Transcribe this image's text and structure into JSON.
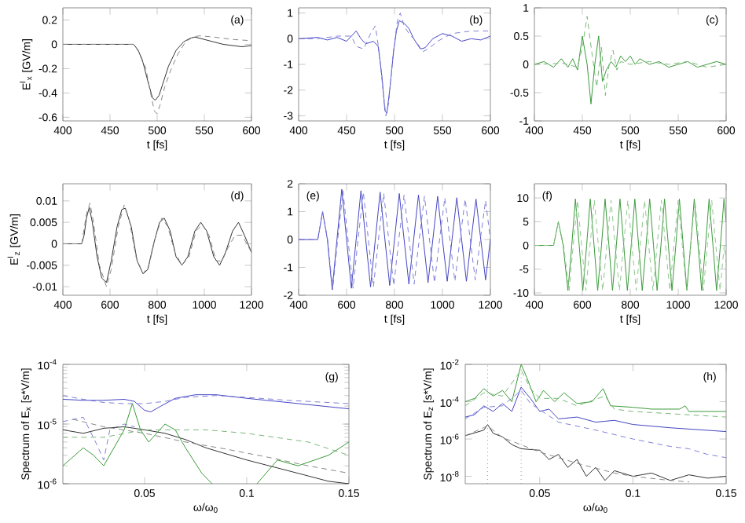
{
  "chart_data": [
    {
      "type": "line",
      "xlabel": "t [fs]",
      "ylabel": "E$^{l}$$_{x}$ [GV/m]",
      "xlim": [
        400,
        600
      ],
      "ylim": [
        -0.63,
        0.3
      ],
      "xticks": [
        400,
        450,
        500,
        550,
        600
      ],
      "yticks": [
        -0.6,
        -0.4,
        -0.2,
        0,
        0.2
      ],
      "annotations": [
        "(a)"
      ],
      "series": [
        {
          "color": "#333333",
          "line_style": "solid",
          "x": [
            400,
            450,
            475,
            480,
            485,
            490,
            495,
            498,
            502,
            507,
            512,
            520,
            528,
            535,
            540,
            550,
            560,
            570,
            580,
            590,
            600
          ],
          "values": [
            0,
            0,
            0,
            -0.05,
            -0.15,
            -0.3,
            -0.44,
            -0.46,
            -0.42,
            -0.3,
            -0.18,
            -0.05,
            0.02,
            0.05,
            0.06,
            0.04,
            0.02,
            0,
            -0.01,
            -0.02,
            -0.01
          ]
        },
        {
          "color": "#888888",
          "line_style": "dashed",
          "x": [
            400,
            475,
            482,
            488,
            493,
            497,
            500,
            503,
            508,
            515,
            522,
            530,
            538,
            545,
            560,
            580,
            600
          ],
          "values": [
            0,
            0,
            -0.08,
            -0.2,
            -0.4,
            -0.55,
            -0.57,
            -0.5,
            -0.35,
            -0.2,
            -0.08,
            0.02,
            0.06,
            0.07,
            0.06,
            0.04,
            0.03
          ]
        }
      ]
    },
    {
      "type": "line",
      "xlabel": "t [fs]",
      "xlim": [
        400,
        600
      ],
      "ylim": [
        -3.2,
        1.2
      ],
      "xticks": [
        400,
        450,
        500,
        550,
        600
      ],
      "yticks": [
        -3,
        -2,
        -1,
        0,
        1
      ],
      "annotations": [
        "(b)"
      ],
      "series": [
        {
          "color": "#4444c4",
          "line_style": "solid",
          "x": [
            400,
            420,
            430,
            440,
            450,
            460,
            465,
            470,
            478,
            483,
            487,
            490,
            492,
            495,
            499,
            502,
            505,
            510,
            515,
            520,
            527,
            532,
            540,
            550,
            560,
            570,
            580,
            590,
            600
          ],
          "values": [
            0,
            0.05,
            -0.05,
            0.05,
            -0.1,
            0.3,
            0,
            -0.2,
            -0.1,
            -0.3,
            -1.5,
            -2.8,
            -2.9,
            -2,
            -0.5,
            0.3,
            0.7,
            0.6,
            0.4,
            0,
            -0.4,
            -0.35,
            0,
            0.2,
            0.1,
            -0.1,
            0,
            -0.05,
            0.1
          ]
        },
        {
          "color": "#8080d8",
          "line_style": "dashed",
          "x": [
            400,
            420,
            440,
            455,
            460,
            468,
            475,
            480,
            484,
            488,
            491,
            494,
            498,
            503,
            506,
            510,
            515,
            520,
            530,
            535,
            545,
            560,
            580,
            600
          ],
          "values": [
            0,
            0,
            0.1,
            0.1,
            -0.3,
            -0.4,
            0.2,
            0.5,
            -0.5,
            -2,
            -3,
            -2.5,
            -0.8,
            0.7,
            1,
            0.5,
            0.2,
            0,
            -0.5,
            -0.4,
            -0.1,
            0.2,
            0.3,
            0.3
          ]
        }
      ]
    },
    {
      "type": "line",
      "xlabel": "t [fs]",
      "xlim": [
        400,
        600
      ],
      "ylim": [
        -1,
        1
      ],
      "xticks": [
        400,
        450,
        500,
        550,
        600
      ],
      "yticks": [
        -1,
        -0.5,
        0,
        0.5,
        1
      ],
      "annotations": [
        "(c)"
      ],
      "series": [
        {
          "color": "#3a9a3a",
          "line_style": "solid",
          "x": [
            400,
            410,
            420,
            428,
            435,
            440,
            445,
            450,
            455,
            459,
            463,
            467,
            471,
            475,
            480,
            485,
            490,
            495,
            500,
            505,
            510,
            520,
            530,
            540,
            550,
            560,
            570,
            580,
            590,
            600
          ],
          "values": [
            0,
            0.05,
            -0.05,
            0.1,
            -0.05,
            0.1,
            -0.1,
            0.5,
            0,
            -0.7,
            0,
            0.5,
            -0.3,
            -0.1,
            0.05,
            -0.05,
            0.15,
            0.05,
            0.15,
            0,
            0.1,
            0,
            0.05,
            -0.05,
            0,
            0.05,
            -0.05,
            0,
            0.05,
            0
          ]
        },
        {
          "color": "#78b878",
          "line_style": "dashed",
          "x": [
            400,
            430,
            445,
            450,
            455,
            460,
            465,
            470,
            474,
            478,
            482,
            486,
            490,
            500,
            520,
            540,
            560,
            580,
            600
          ],
          "values": [
            0,
            0.02,
            -0.05,
            0.3,
            0.85,
            0.2,
            -0.4,
            0.3,
            -0.55,
            0,
            0.25,
            -0.1,
            0.05,
            0,
            0.05,
            0,
            0.05,
            -0.05,
            0
          ]
        }
      ]
    },
    {
      "type": "line",
      "xlabel": "t [fs]",
      "ylabel": "E$^{l}$$_{z}$ [GV/m]",
      "xlim": [
        400,
        1200
      ],
      "ylim": [
        -0.012,
        0.014
      ],
      "xticks": [
        400,
        600,
        800,
        1000,
        1200
      ],
      "yticks": [
        -0.01,
        -0.005,
        0,
        0.005,
        0.01
      ],
      "annotations": [
        "(d)"
      ],
      "series": [
        {
          "color": "#333333",
          "line_style": "solid",
          "x": [
            400,
            480,
            490,
            500,
            512,
            525,
            545,
            565,
            585,
            605,
            630,
            650,
            665,
            690,
            715,
            740,
            760,
            785,
            810,
            830,
            855,
            880,
            905,
            930,
            960,
            985,
            1010,
            1040,
            1065,
            1090,
            1120,
            1145,
            1170,
            1200
          ],
          "values": [
            0,
            0,
            0.002,
            0.006,
            0.0085,
            0.005,
            -0.003,
            -0.008,
            -0.009,
            -0.004,
            0.004,
            0.008,
            0.0083,
            0.004,
            -0.004,
            -0.007,
            -0.006,
            0,
            0.005,
            0.006,
            0.003,
            -0.003,
            -0.005,
            -0.003,
            0.003,
            0.005,
            0.003,
            -0.003,
            -0.005,
            -0.002,
            0.003,
            0.005,
            0.002,
            -0.002
          ]
        },
        {
          "color": "#888888",
          "line_style": "dashed",
          "x": [
            400,
            480,
            500,
            515,
            530,
            555,
            585,
            605,
            635,
            660,
            680,
            710,
            740,
            765,
            795,
            820,
            845,
            875,
            905,
            935,
            965,
            990,
            1020,
            1050,
            1075,
            1100,
            1130,
            1160,
            1190,
            1200
          ],
          "values": [
            0,
            0,
            0.007,
            0.0095,
            0.005,
            -0.005,
            -0.01,
            -0.006,
            0.004,
            0.009,
            0.006,
            -0.003,
            -0.007,
            -0.005,
            0.002,
            0.006,
            0.004,
            -0.002,
            -0.005,
            -0.003,
            0.003,
            0.0045,
            0.002,
            -0.004,
            -0.004,
            -0.001,
            0.002,
            0.002,
            -0.001,
            -0.002
          ]
        }
      ]
    },
    {
      "type": "line",
      "xlabel": "t [fs]",
      "xlim": [
        400,
        1200
      ],
      "ylim": [
        -2,
        2
      ],
      "xticks": [
        400,
        600,
        800,
        1000,
        1200
      ],
      "yticks": [
        -2,
        -1,
        0,
        1,
        2
      ],
      "annotations": [
        "(e)"
      ],
      "series": [
        {
          "color": "#4444c4",
          "line_style": "solid",
          "x": [
            400,
            480,
            500,
            520,
            540,
            560,
            580,
            600,
            620,
            640,
            660,
            680,
            700,
            720,
            740,
            760,
            780,
            800,
            820,
            840,
            860,
            880,
            900,
            920,
            940,
            960,
            980,
            1000,
            1020,
            1040,
            1060,
            1080,
            1100,
            1120,
            1140,
            1160,
            1180,
            1200
          ],
          "values": [
            0,
            0,
            1,
            0,
            -1.8,
            0,
            1.8,
            0,
            -1.75,
            0,
            1.75,
            0,
            -1.7,
            0,
            1.7,
            0,
            -1.65,
            0,
            1.65,
            0,
            -1.6,
            0,
            1.6,
            0,
            -1.55,
            0,
            1.55,
            0,
            -1.5,
            0,
            1.5,
            0,
            -1.5,
            0,
            1.45,
            0,
            -1.45,
            0
          ]
        },
        {
          "color": "#8080d8",
          "line_style": "dashed",
          "x": [
            400,
            480,
            500,
            521,
            542,
            563,
            585,
            606,
            627,
            648,
            670,
            691,
            712,
            733,
            755,
            776,
            797,
            818,
            840,
            861,
            882,
            903,
            925,
            946,
            967,
            988,
            1010,
            1031,
            1052,
            1073,
            1095,
            1116,
            1137,
            1158,
            1180,
            1200
          ],
          "values": [
            0,
            0,
            1,
            0,
            -1.8,
            0,
            1.75,
            0,
            -1.75,
            0,
            1.7,
            0,
            -1.7,
            0,
            1.65,
            0,
            -1.65,
            0,
            1.6,
            0,
            -1.6,
            0,
            1.55,
            0,
            -1.55,
            0,
            1.5,
            0,
            -1.5,
            0,
            1.45,
            0,
            -1.45,
            0,
            1.4,
            0
          ]
        }
      ]
    },
    {
      "type": "line",
      "xlabel": "t [fs]",
      "xlim": [
        400,
        1200
      ],
      "ylim": [
        -10.5,
        13
      ],
      "xticks": [
        400,
        600,
        800,
        1000,
        1200
      ],
      "yticks": [
        -10,
        -5,
        0,
        5,
        10
      ],
      "annotations": [
        "(f)"
      ],
      "series": [
        {
          "color": "#3a9a3a",
          "line_style": "solid",
          "x": [
            400,
            480,
            500,
            520,
            540,
            556,
            571,
            587,
            602,
            618,
            633,
            649,
            664,
            680,
            695,
            711,
            726,
            742,
            757,
            773,
            788,
            804,
            819,
            835,
            850,
            866,
            881,
            897,
            912,
            928,
            943,
            959,
            974,
            990,
            1005,
            1021,
            1036,
            1052,
            1067,
            1083,
            1098,
            1114,
            1129,
            1145,
            1160,
            1176,
            1191,
            1200
          ],
          "values": [
            0,
            0,
            5,
            0,
            -9.5,
            0,
            9.8,
            0,
            -9.5,
            0,
            9.8,
            0,
            -9.5,
            0,
            9.8,
            0,
            -9.5,
            0,
            9.8,
            0,
            -9.5,
            0,
            9.8,
            0,
            -9.5,
            0,
            9.8,
            0,
            -9.5,
            0,
            9.8,
            0,
            -9.5,
            0,
            9.8,
            0,
            -9.5,
            0,
            9.8,
            0,
            -9.5,
            0,
            9.8,
            0,
            -9.5,
            0,
            9.8,
            5
          ]
        },
        {
          "color": "#90c890",
          "line_style": "dashed",
          "x": [
            400,
            480,
            500,
            522,
            545,
            562,
            580,
            597,
            615,
            632,
            650,
            667,
            685,
            702,
            720,
            737,
            755,
            772,
            790,
            807,
            825,
            842,
            860,
            877,
            895,
            912,
            930,
            947,
            965,
            982,
            1000,
            1017,
            1035,
            1052,
            1070,
            1087,
            1105,
            1122,
            1140,
            1157,
            1175,
            1192,
            1200
          ],
          "values": [
            0,
            0,
            5,
            0,
            -9.5,
            0,
            9.5,
            0,
            -9.5,
            0,
            9.5,
            0,
            -9.5,
            0,
            9.5,
            0,
            -9.5,
            0,
            9.5,
            0,
            -9.5,
            0,
            9.5,
            0,
            -9.5,
            0,
            9.5,
            0,
            -9.5,
            0,
            9.5,
            0,
            -9.5,
            0,
            9.5,
            0,
            -9.5,
            0,
            9.5,
            0,
            -9.5,
            0,
            -3.5
          ]
        }
      ]
    },
    {
      "type": "line",
      "log": "y",
      "xlabel": "ω/ω$_{0}$",
      "ylabel": "Spectrum of E$_{x}$ [s*V/m]",
      "xlim": [
        0.01,
        0.15
      ],
      "ylim": [
        1e-06,
        0.0001
      ],
      "xticks": [
        0.05,
        0.1,
        0.15
      ],
      "yticks": [
        {
          "value": 1e-06,
          "label": "10$^{-6}$"
        },
        {
          "value": 1e-05,
          "label": "10$^{-5}$"
        },
        {
          "value": 0.0001,
          "label": "10$^{-4}$"
        }
      ],
      "annotations": [
        "(g)"
      ],
      "series": [
        {
          "color": "#4444c4",
          "line_style": "solid",
          "x": [
            0.01,
            0.02,
            0.03,
            0.04,
            0.045,
            0.05,
            0.053,
            0.058,
            0.065,
            0.075,
            0.085,
            0.1,
            0.12,
            0.15
          ],
          "values": [
            2.6e-05,
            2.5e-05,
            2.5e-05,
            2.6e-05,
            2.4e-05,
            1.7e-05,
            1.6e-05,
            2e-05,
            2.7e-05,
            3.1e-05,
            3.1e-05,
            2.7e-05,
            2.3e-05,
            1.8e-05
          ]
        },
        {
          "color": "#8080d8",
          "line_style": "dashed",
          "x": [
            0.01,
            0.02,
            0.03,
            0.04,
            0.05,
            0.06,
            0.07,
            0.085,
            0.1,
            0.12,
            0.15
          ],
          "values": [
            3e-05,
            2.6e-05,
            2.3e-05,
            2.2e-05,
            2.2e-05,
            2.4e-05,
            2.8e-05,
            3e-05,
            2.8e-05,
            2.5e-05,
            2.2e-05
          ]
        },
        {
          "color": "#8080d8",
          "line_style": "dashed",
          "x": [
            0.01,
            0.02,
            0.026,
            0.03,
            0.033,
            0.04,
            0.045
          ],
          "values": [
            1.1e-05,
            1.3e-05,
            5e-06,
            2.5e-06,
            8e-06,
            1e-05,
            9e-06
          ]
        },
        {
          "color": "#333333",
          "line_style": "solid",
          "x": [
            0.01,
            0.02,
            0.03,
            0.04,
            0.05,
            0.06,
            0.07,
            0.08,
            0.1,
            0.125,
            0.14,
            0.15
          ],
          "values": [
            8e-06,
            7e-06,
            8.5e-06,
            9e-06,
            8e-06,
            7e-06,
            5.5e-06,
            4e-06,
            2.5e-06,
            1.5e-06,
            1.1e-06,
            1e-06
          ]
        },
        {
          "color": "#888888",
          "line_style": "dashed",
          "x": [
            0.015,
            0.03,
            0.05,
            0.07,
            0.09,
            0.11,
            0.13,
            0.15
          ],
          "values": [
            1.2e-05,
            9e-06,
            7e-06,
            5e-06,
            3.8e-06,
            2.8e-06,
            2e-06,
            1.5e-06
          ]
        },
        {
          "color": "#3a9a3a",
          "line_style": "solid",
          "x": [
            0.01,
            0.02,
            0.025,
            0.03,
            0.035,
            0.04,
            0.044,
            0.048,
            0.052,
            0.06,
            0.065,
            0.07,
            0.078,
            0.083,
            0.088,
            0.1,
            0.105,
            0.115,
            0.125,
            0.14,
            0.15
          ],
          "values": [
            2e-06,
            4e-06,
            3e-06,
            2e-06,
            4e-06,
            8e-06,
            2.2e-05,
            8e-06,
            5e-06,
            1e-05,
            8e-06,
            4e-06,
            1.5e-06,
            1e-06,
            null,
            null,
            1e-06,
            2.5e-06,
            2e-06,
            3e-06,
            5e-06
          ]
        },
        {
          "color": "#78b878",
          "line_style": "dashed",
          "x": [
            0.01,
            0.03,
            0.05,
            0.08,
            0.1,
            0.13,
            0.15
          ],
          "values": [
            6e-06,
            6e-06,
            8e-06,
            8e-06,
            7e-06,
            5e-06,
            3e-06
          ]
        }
      ]
    },
    {
      "type": "line",
      "log": "y",
      "xlabel": "ω/ω$_{0}$",
      "ylabel": "Spectrum of E$_{z}$ [s*V/m]",
      "xlim": [
        0.01,
        0.15
      ],
      "ylim": [
        4e-09,
        0.01
      ],
      "xticks": [
        0.05,
        0.1,
        0.15
      ],
      "yticks": [
        {
          "value": 1e-08,
          "label": "10$^{-8}$"
        },
        {
          "value": 1e-06,
          "label": "10$^{-6}$"
        },
        {
          "value": 0.0001,
          "label": "10$^{-4}$"
        },
        {
          "value": 0.01,
          "label": "10$^{-2}$"
        }
      ],
      "annotations": [
        "(h)"
      ],
      "ref_lines": [
        {
          "axis": "x",
          "value": 0.022,
          "color": "#999999",
          "line_style": "dotted"
        },
        {
          "axis": "x",
          "value": 0.04,
          "color": "#999999",
          "line_style": "dotted"
        }
      ],
      "series": [
        {
          "color": "#3a9a3a",
          "line_style": "solid",
          "x": [
            0.01,
            0.015,
            0.02,
            0.025,
            0.03,
            0.035,
            0.04,
            0.043,
            0.048,
            0.052,
            0.058,
            0.063,
            0.07,
            0.078,
            0.084,
            0.088,
            0.1,
            0.11,
            0.125,
            0.128,
            0.13,
            0.15
          ],
          "values": [
            0.0001,
            0.00015,
            0.0005,
            0.0002,
            0.0004,
            0.0001,
            0.01,
            0.002,
            0.0001,
            0.0004,
            0.0001,
            0.0003,
            8e-05,
            0.0001,
            0.0005,
            6e-05,
            5e-05,
            4e-05,
            4e-05,
            6e-05,
            3e-05,
            3e-05
          ]
        },
        {
          "color": "#78b878",
          "line_style": "dashed",
          "x": [
            0.01,
            0.02,
            0.03,
            0.04,
            0.045,
            0.05,
            0.06,
            0.07,
            0.085,
            0.09,
            0.1,
            0.15
          ],
          "values": [
            6e-05,
            0.0003,
            0.0002,
            0.005,
            0.0005,
            0.00015,
            0.00015,
            6e-05,
            0.0002,
            4e-05,
            3e-05,
            1.5e-05
          ]
        },
        {
          "color": "#4444c4",
          "line_style": "solid",
          "x": [
            0.01,
            0.015,
            0.02,
            0.025,
            0.03,
            0.035,
            0.04,
            0.045,
            0.05,
            0.055,
            0.06,
            0.07,
            0.08,
            0.09,
            0.1,
            0.12,
            0.15
          ],
          "values": [
            1.5e-05,
            2e-05,
            6e-05,
            3e-05,
            8e-05,
            3e-05,
            0.0006,
            0.00015,
            3e-05,
            4e-05,
            1.2e-05,
            1.5e-05,
            8e-06,
            1e-05,
            6e-06,
            4e-06,
            2.5e-06
          ]
        },
        {
          "color": "#8080d8",
          "line_style": "dashed",
          "x": [
            0.01,
            0.02,
            0.03,
            0.04,
            0.045,
            0.06,
            0.08,
            0.1,
            0.12,
            0.13,
            0.14,
            0.15
          ],
          "values": [
            1.2e-05,
            5e-05,
            6e-05,
            0.0004,
            8e-05,
            8e-06,
            3e-06,
            1e-06,
            4e-07,
            3e-07,
            1.5e-07,
            1e-07
          ]
        },
        {
          "color": "#333333",
          "line_style": "solid",
          "x": [
            0.01,
            0.02,
            0.022,
            0.025,
            0.03,
            0.035,
            0.04,
            0.05,
            0.055,
            0.06,
            0.065,
            0.07,
            0.075,
            0.08,
            0.085,
            0.09,
            0.1,
            0.11,
            0.12,
            0.13,
            0.14,
            0.15
          ],
          "values": [
            1.5e-06,
            3e-06,
            6e-06,
            2e-06,
            1.3e-06,
            5e-07,
            3e-07,
            2.5e-07,
            8e-08,
            1.5e-07,
            3e-08,
            8e-08,
            1e-08,
            3e-08,
            6e-09,
            2e-08,
            1e-08,
            1.5e-08,
            6e-09,
            1.2e-08,
            8e-09,
            1e-08
          ]
        },
        {
          "color": "#888888",
          "line_style": "dashed",
          "x": [
            0.01,
            0.022,
            0.03,
            0.05,
            0.07,
            0.09,
            0.1,
            0.12,
            0.13
          ],
          "values": [
            1.5e-06,
            5e-06,
            1.2e-06,
            2e-07,
            5e-08,
            1.5e-08,
            1e-08,
            6e-09,
            5e-09
          ]
        }
      ]
    }
  ]
}
